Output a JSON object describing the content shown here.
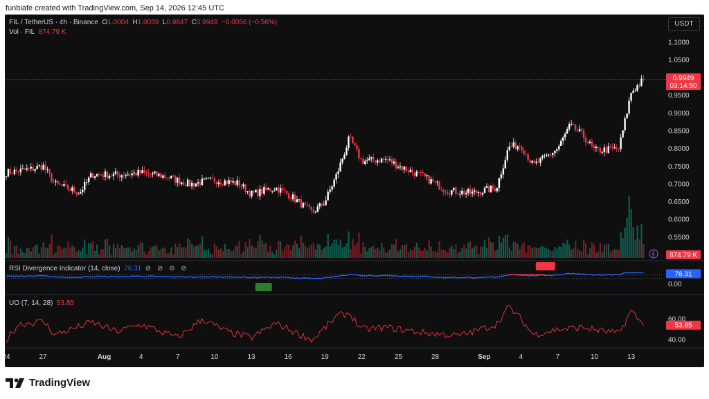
{
  "header": {
    "attribution": "funbiafe created with TradingView.com, Sep 14, 2026 12:45 UTC"
  },
  "legend": {
    "symbol": "FIL / TetherUS · 4h · Binance",
    "open_label": "O",
    "open": "1.0004",
    "high_label": "H",
    "high": "1.0039",
    "low_label": "L",
    "low": "0.9847",
    "close_label": "C",
    "close": "0.9949",
    "change": "−0.0056 (−0.56%)",
    "vol_label": "Vol · FIL",
    "vol": "874.79 K"
  },
  "currency_button": "USDT",
  "price_axis": {
    "ticks": [
      "1.1000",
      "1.0500",
      "0.9500",
      "0.9000",
      "0.8500",
      "0.8000",
      "0.7500",
      "0.7000",
      "0.6500",
      "0.6000",
      "0.5500"
    ],
    "last_price": "0.9949",
    "countdown": "03:14:50",
    "vol_label": "874.79 K"
  },
  "rsi": {
    "title": "RSI Divergence Indicator (14, close)",
    "value": "76.31",
    "icons": "⊘ ⊘ ⊘ ⊘",
    "axis_zero": "0.00",
    "bull_label": "Bull",
    "bear_label": "Bear"
  },
  "uo": {
    "title": "UO (7, 14, 28)",
    "value": "53.85",
    "ticks": [
      "60.00",
      "40.00"
    ]
  },
  "time_axis": {
    "labels": [
      "24",
      "27",
      "Aug",
      "4",
      "7",
      "10",
      "13",
      "16",
      "19",
      "22",
      "25",
      "28",
      "Sep",
      "4",
      "7",
      "10",
      "13"
    ]
  },
  "footer": {
    "brand": "TradingView"
  },
  "colors": {
    "up": "#ffffff",
    "down": "#f23645",
    "vol_up": "#0e5e4f",
    "vol_down": "#7a1e24",
    "rsi": "#2962ff",
    "uo": "#f23645",
    "bg": "#0f0f0f"
  },
  "chart_data": [
    {
      "type": "candlestick",
      "title": "FIL / TetherUS · 4h · Binance",
      "x_range": [
        "Jul 24",
        "Sep 14"
      ],
      "ylim": [
        0.5,
        1.12
      ],
      "anchors_close": [
        {
          "x": "Jul 24",
          "y": 0.733
        },
        {
          "x": "Jul 26",
          "y": 0.742
        },
        {
          "x": "Jul 27",
          "y": 0.752
        },
        {
          "x": "Jul 28",
          "y": 0.7
        },
        {
          "x": "Jul 30",
          "y": 0.676
        },
        {
          "x": "Jul 31",
          "y": 0.728
        },
        {
          "x": "Aug 2",
          "y": 0.726
        },
        {
          "x": "Aug 4",
          "y": 0.732
        },
        {
          "x": "Aug 6",
          "y": 0.722
        },
        {
          "x": "Aug 8",
          "y": 0.7
        },
        {
          "x": "Aug 10",
          "y": 0.712
        },
        {
          "x": "Aug 12",
          "y": 0.702
        },
        {
          "x": "Aug 13",
          "y": 0.672
        },
        {
          "x": "Aug 15",
          "y": 0.69
        },
        {
          "x": "Aug 16",
          "y": 0.672
        },
        {
          "x": "Aug 18",
          "y": 0.62
        },
        {
          "x": "Aug 19",
          "y": 0.65
        },
        {
          "x": "Aug 20",
          "y": 0.73
        },
        {
          "x": "Aug 21",
          "y": 0.83
        },
        {
          "x": "Aug 22",
          "y": 0.765
        },
        {
          "x": "Aug 24",
          "y": 0.77
        },
        {
          "x": "Aug 25",
          "y": 0.752
        },
        {
          "x": "Aug 27",
          "y": 0.722
        },
        {
          "x": "Aug 29",
          "y": 0.682
        },
        {
          "x": "Aug 31",
          "y": 0.675
        },
        {
          "x": "Sep 2",
          "y": 0.69
        },
        {
          "x": "Sep 3",
          "y": 0.805
        },
        {
          "x": "Sep 4",
          "y": 0.81
        },
        {
          "x": "Sep 5",
          "y": 0.752
        },
        {
          "x": "Sep 7",
          "y": 0.8
        },
        {
          "x": "Sep 8",
          "y": 0.865
        },
        {
          "x": "Sep 9",
          "y": 0.84
        },
        {
          "x": "Sep 10",
          "y": 0.795
        },
        {
          "x": "Sep 12",
          "y": 0.8
        },
        {
          "x": "Sep 13",
          "y": 0.96
        },
        {
          "x": "Sep 14",
          "y": 0.9949
        }
      ],
      "last_close": 0.9949
    },
    {
      "type": "line",
      "title": "RSI Divergence Indicator (14, close)",
      "ylim": [
        0,
        100
      ],
      "last_value": 76.31,
      "annotations": [
        {
          "x": "Aug 14",
          "label": "Bull"
        },
        {
          "x": "Sep 6",
          "label": "Bear"
        }
      ]
    },
    {
      "type": "line",
      "title": "UO (7, 14, 28)",
      "ylim": [
        35,
        75
      ],
      "last_value": 53.85,
      "anchors": [
        {
          "x": "Jul 24",
          "y": 40
        },
        {
          "x": "Jul 25",
          "y": 55
        },
        {
          "x": "Jul 27",
          "y": 58
        },
        {
          "x": "Jul 28",
          "y": 45
        },
        {
          "x": "Jul 31",
          "y": 57
        },
        {
          "x": "Aug 2",
          "y": 48
        },
        {
          "x": "Aug 4",
          "y": 55
        },
        {
          "x": "Aug 7",
          "y": 42
        },
        {
          "x": "Aug 9",
          "y": 60
        },
        {
          "x": "Aug 11",
          "y": 48
        },
        {
          "x": "Aug 13",
          "y": 42
        },
        {
          "x": "Aug 15",
          "y": 56
        },
        {
          "x": "Aug 17",
          "y": 45
        },
        {
          "x": "Aug 18",
          "y": 40
        },
        {
          "x": "Aug 20",
          "y": 63
        },
        {
          "x": "Aug 21",
          "y": 66
        },
        {
          "x": "Aug 22",
          "y": 50
        },
        {
          "x": "Aug 24",
          "y": 52
        },
        {
          "x": "Aug 27",
          "y": 47
        },
        {
          "x": "Aug 30",
          "y": 44
        },
        {
          "x": "Sep 2",
          "y": 55
        },
        {
          "x": "Sep 3",
          "y": 72
        },
        {
          "x": "Sep 4",
          "y": 60
        },
        {
          "x": "Sep 5",
          "y": 45
        },
        {
          "x": "Sep 7",
          "y": 50
        },
        {
          "x": "Sep 9",
          "y": 52
        },
        {
          "x": "Sep 11",
          "y": 48
        },
        {
          "x": "Sep 12",
          "y": 46
        },
        {
          "x": "Sep 13",
          "y": 68
        },
        {
          "x": "Sep 14",
          "y": 53.85
        }
      ]
    }
  ]
}
